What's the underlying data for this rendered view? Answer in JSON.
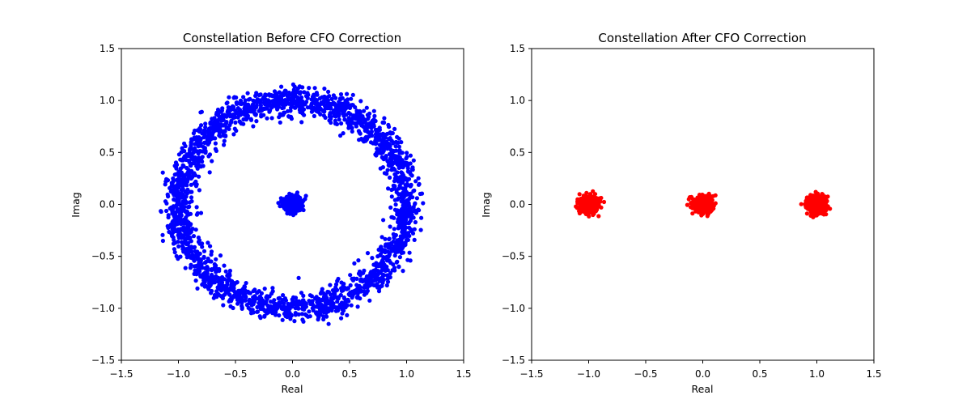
{
  "chart_data": [
    {
      "type": "scatter",
      "title": "Constellation Before CFO Correction",
      "xlabel": "Real",
      "ylabel": "Imag",
      "xlim": [
        -1.5,
        1.5
      ],
      "ylim": [
        -1.5,
        1.5
      ],
      "xticks": [
        "-1.5",
        "-1.0",
        "-0.5",
        "0.0",
        "0.5",
        "1.0",
        "1.5"
      ],
      "yticks": [
        "-1.5",
        "-1.0",
        "-0.5",
        "0.0",
        "0.5",
        "1.0",
        "1.5"
      ],
      "grid": false,
      "color": "#0000ff",
      "clusters": [
        {
          "shape": "ring",
          "cx": 0.0,
          "cy": 0.0,
          "radius": 1.0,
          "spread": 0.06,
          "points": 2400
        },
        {
          "shape": "blob",
          "cx": 0.0,
          "cy": 0.0,
          "spread": 0.04,
          "points": 400
        }
      ]
    },
    {
      "type": "scatter",
      "title": "Constellation After CFO Correction",
      "xlabel": "Real",
      "ylabel": "Imag",
      "xlim": [
        -1.5,
        1.5
      ],
      "ylim": [
        -1.5,
        1.5
      ],
      "xticks": [
        "-1.5",
        "-1.0",
        "-0.5",
        "0.0",
        "0.5",
        "1.0",
        "1.5"
      ],
      "yticks": [
        "-1.5",
        "-1.0",
        "-0.5",
        "0.0",
        "0.5",
        "1.0",
        "1.5"
      ],
      "grid": false,
      "color": "#ff0000",
      "clusters": [
        {
          "shape": "blob",
          "cx": -1.0,
          "cy": 0.0,
          "spread": 0.04,
          "points": 450
        },
        {
          "shape": "blob",
          "cx": 0.0,
          "cy": 0.0,
          "spread": 0.04,
          "points": 450
        },
        {
          "shape": "blob",
          "cx": 1.0,
          "cy": 0.0,
          "spread": 0.04,
          "points": 450
        }
      ]
    }
  ]
}
